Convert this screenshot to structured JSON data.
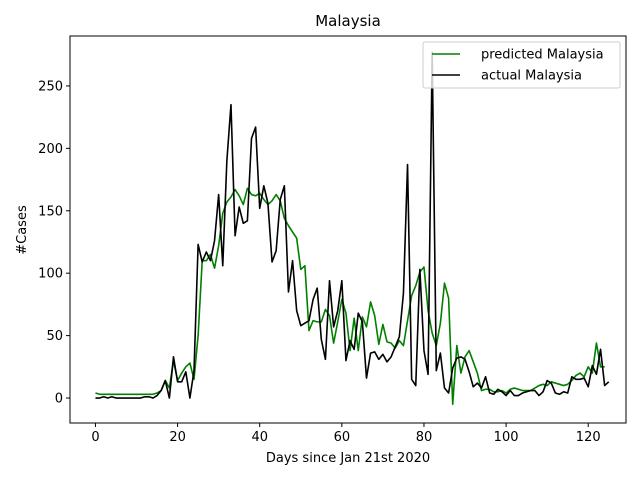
{
  "chart_data": {
    "type": "line",
    "title": "Malaysia",
    "xlabel": "Days since Jan 21st 2020",
    "ylabel": "#Cases",
    "xlim": [
      -6.2,
      129.2
    ],
    "ylim": [
      -20,
      290
    ],
    "xticks": [
      0,
      20,
      40,
      60,
      80,
      100,
      120
    ],
    "yticks": [
      0,
      50,
      100,
      150,
      200,
      250
    ],
    "grid": false,
    "legend_position": "top-right",
    "series": [
      {
        "name": "predicted Malaysia",
        "color": "#008000",
        "y": [
          4,
          3,
          3,
          3,
          3,
          3,
          3,
          3,
          3,
          3,
          3,
          3,
          3,
          3,
          3,
          4,
          6,
          14,
          8,
          30,
          14,
          20,
          25,
          28,
          15,
          50,
          110,
          110,
          115,
          104,
          122,
          148,
          157,
          161,
          167,
          162,
          155,
          168,
          163,
          162,
          164,
          159,
          155,
          158,
          163,
          158,
          144,
          138,
          133,
          128,
          103,
          106,
          54,
          62,
          61,
          61,
          71,
          66,
          44,
          61,
          79,
          68,
          38,
          64,
          38,
          65,
          57,
          77,
          66,
          43,
          59,
          45,
          44,
          40,
          46,
          42,
          62,
          82,
          90,
          101,
          105,
          70,
          52,
          42,
          60,
          92,
          80,
          -5,
          42,
          20,
          33,
          38,
          29,
          20,
          6,
          7,
          7,
          5,
          5,
          6,
          4,
          7,
          8,
          7,
          6,
          6,
          6,
          8,
          10,
          11,
          10,
          13,
          12,
          11,
          10,
          11,
          14,
          18,
          20,
          17,
          25,
          20,
          44,
          25,
          25
        ]
      },
      {
        "name": "actual Malaysia",
        "color": "#000000",
        "y": [
          0,
          0,
          1,
          0,
          1,
          0,
          0,
          0,
          0,
          0,
          0,
          0,
          1,
          1,
          0,
          2,
          6,
          14,
          0,
          33,
          13,
          13,
          21,
          0,
          22,
          123,
          109,
          117,
          110,
          126,
          163,
          106,
          190,
          235,
          130,
          153,
          140,
          142,
          208,
          217,
          152,
          170,
          156,
          109,
          118,
          159,
          170,
          85,
          110,
          70,
          58,
          60,
          62,
          79,
          88,
          47,
          31,
          94,
          57,
          70,
          94,
          30,
          46,
          39,
          68,
          61,
          16,
          36,
          37,
          31,
          35,
          29,
          33,
          41,
          49,
          84,
          187,
          15,
          10,
          103,
          38,
          19,
          277,
          22,
          36,
          8,
          4,
          24,
          32,
          33,
          31,
          21,
          9,
          12,
          8,
          17,
          4,
          3,
          7,
          5,
          2,
          6,
          2,
          2,
          4,
          5,
          6,
          6,
          2,
          5,
          14,
          12,
          4,
          3,
          5,
          4,
          17,
          15,
          15,
          16,
          9,
          26,
          19,
          39,
          10,
          13
        ]
      }
    ]
  }
}
